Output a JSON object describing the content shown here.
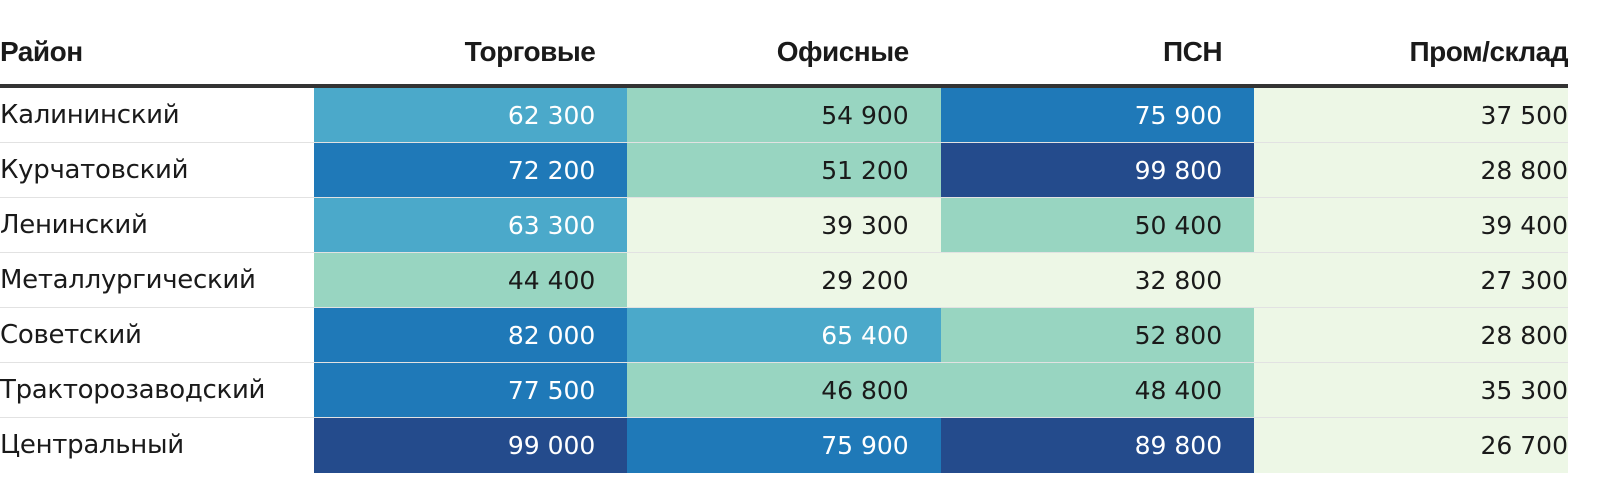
{
  "chart_data": {
    "type": "table",
    "columns": [
      "Район",
      "Торговые",
      "Офисные",
      "ПСН",
      "Пром/склад"
    ],
    "rows": [
      {
        "district": "Калининский",
        "values": [
          "62 300",
          "54 900",
          "75 900",
          "37 500"
        ],
        "levels": [
          3,
          2,
          4,
          1
        ]
      },
      {
        "district": "Курчатовский",
        "values": [
          "72 200",
          "51 200",
          "99 800",
          "28 800"
        ],
        "levels": [
          4,
          2,
          5,
          1
        ]
      },
      {
        "district": "Ленинский",
        "values": [
          "63 300",
          "39 300",
          "50 400",
          "39 400"
        ],
        "levels": [
          3,
          1,
          2,
          1
        ]
      },
      {
        "district": "Металлургический",
        "values": [
          "44 400",
          "29 200",
          "32 800",
          "27 300"
        ],
        "levels": [
          2,
          1,
          1,
          1
        ]
      },
      {
        "district": "Советский",
        "values": [
          "82 000",
          "65 400",
          "52 800",
          "28 800"
        ],
        "levels": [
          4,
          3,
          2,
          1
        ]
      },
      {
        "district": "Тракторозаводский",
        "values": [
          "77 500",
          "46 800",
          "48 400",
          "35 300"
        ],
        "levels": [
          4,
          2,
          2,
          1
        ]
      },
      {
        "district": "Центральный",
        "values": [
          "99 000",
          "75 900",
          "89 800",
          "26 700"
        ],
        "levels": [
          5,
          4,
          5,
          1
        ]
      }
    ],
    "palette": {
      "1": {
        "bg": "#edf7e6",
        "fg": "#1a1a1a"
      },
      "2": {
        "bg": "#98d5c1",
        "fg": "#1a1a1a"
      },
      "3": {
        "bg": "#4ba9ca",
        "fg": "#ffffff"
      },
      "4": {
        "bg": "#1f79b8",
        "fg": "#ffffff"
      },
      "5": {
        "bg": "#244b8c",
        "fg": "#ffffff"
      }
    }
  }
}
